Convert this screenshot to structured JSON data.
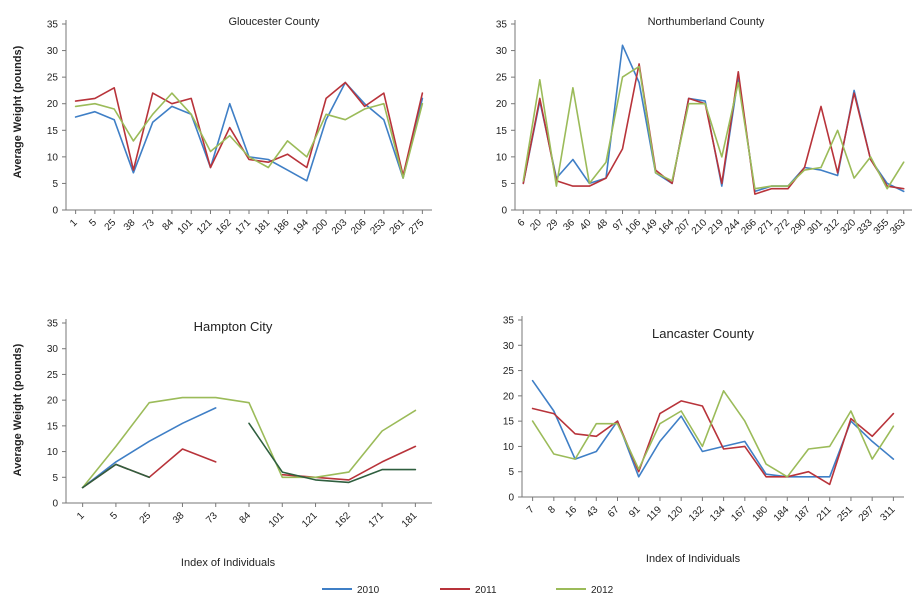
{
  "figure": {
    "y_axis_label": "Average Weight (pounds)",
    "x_axis_label": "Index of Individuals",
    "legend": [
      {
        "name": "2010",
        "color": "#3f7fc6"
      },
      {
        "name": "2011",
        "color": "#b8333a"
      },
      {
        "name": "2012",
        "color": "#9bbb59"
      }
    ]
  },
  "chart_data": [
    {
      "type": "line",
      "title": "Gloucester County",
      "x": [
        "1",
        "5",
        "25",
        "38",
        "73",
        "84",
        "101",
        "121",
        "162",
        "171",
        "181",
        "186",
        "194",
        "200",
        "203",
        "206",
        "253",
        "261",
        "275"
      ],
      "ylim": [
        0,
        35
      ],
      "yticks": [
        0,
        5,
        10,
        15,
        20,
        25,
        30,
        35
      ],
      "grid": false,
      "series": [
        {
          "name": "2010",
          "values": [
            17.5,
            18.5,
            17,
            7,
            16.5,
            19.5,
            18,
            8,
            20,
            10,
            9.5,
            7.5,
            5.5,
            17,
            24,
            20,
            17,
            6,
            21
          ]
        },
        {
          "name": "2011",
          "values": [
            20.5,
            21,
            23,
            7.5,
            22,
            20,
            21,
            8,
            15.5,
            9.5,
            9,
            10.5,
            8,
            21,
            24,
            19.5,
            22,
            6.5,
            22
          ]
        },
        {
          "name": "2012",
          "values": [
            19.5,
            20,
            19,
            13,
            18,
            22,
            18,
            11,
            14,
            10,
            8,
            13,
            10,
            18,
            17,
            19,
            20,
            6,
            20
          ]
        }
      ]
    },
    {
      "type": "line",
      "title": "Northumberland County",
      "x": [
        "6",
        "20",
        "29",
        "36",
        "40",
        "48",
        "97",
        "106",
        "149",
        "164",
        "207",
        "210",
        "219",
        "244",
        "266",
        "271",
        "272",
        "290",
        "301",
        "312",
        "320",
        "333",
        "355",
        "363"
      ],
      "ylim": [
        0,
        35
      ],
      "yticks": [
        0,
        5,
        10,
        15,
        20,
        25,
        30,
        35
      ],
      "grid": false,
      "series": [
        {
          "name": "2010",
          "values": [
            5,
            20.5,
            6,
            9.5,
            5,
            6,
            31,
            24,
            7,
            5,
            21,
            20.5,
            4.5,
            25,
            3.5,
            4.5,
            4.5,
            8,
            7.5,
            6.5,
            22.5,
            9.5,
            5,
            3.5
          ]
        },
        {
          "name": "2011",
          "values": [
            5,
            21,
            5.5,
            4.5,
            4.5,
            6,
            11.5,
            27.5,
            7.5,
            5,
            21,
            20,
            5,
            26,
            3,
            4,
            4,
            8,
            19.5,
            7,
            22,
            9.5,
            4.5,
            4
          ]
        },
        {
          "name": "2012",
          "values": [
            5.5,
            24.5,
            4.5,
            23,
            5,
            9,
            25,
            27,
            7,
            5.5,
            20,
            20,
            10,
            24,
            4,
            4.5,
            4.5,
            7.5,
            8,
            15,
            6,
            10,
            4,
            9
          ]
        }
      ]
    },
    {
      "type": "line",
      "title": "Hampton City",
      "x": [
        "1",
        "5",
        "25",
        "38",
        "73",
        "84",
        "101",
        "121",
        "162",
        "171",
        "181"
      ],
      "xlabel": "Index of Individuals",
      "ylim": [
        0,
        35
      ],
      "yticks": [
        0,
        5,
        10,
        15,
        20,
        25,
        30,
        35
      ],
      "grid": false,
      "series": [
        {
          "name": "2010",
          "values": [
            3,
            8,
            12,
            15.5,
            18.5,
            null,
            null,
            null,
            null,
            null,
            null
          ]
        },
        {
          "name": "2011",
          "values": [
            3,
            7.5,
            5,
            10.5,
            8,
            null,
            5.5,
            5,
            4.5,
            8,
            11
          ]
        },
        {
          "name": "2012",
          "values": [
            3,
            11,
            19.5,
            20.5,
            20.5,
            19.5,
            5,
            5,
            6,
            14,
            18
          ]
        },
        {
          "name": "",
          "values": [
            3,
            7.5,
            5,
            null,
            null,
            15.5,
            6,
            4.5,
            4,
            6.5,
            6.5
          ]
        }
      ]
    },
    {
      "type": "line",
      "title": "Lancaster County",
      "x": [
        "7",
        "8",
        "16",
        "43",
        "67",
        "91",
        "119",
        "120",
        "132",
        "134",
        "167",
        "180",
        "184",
        "187",
        "211",
        "251",
        "297",
        "311"
      ],
      "xlabel": "Index of Individuals",
      "ylim": [
        0,
        35
      ],
      "yticks": [
        0,
        5,
        10,
        15,
        20,
        25,
        30,
        35
      ],
      "grid": false,
      "series": [
        {
          "name": "2010",
          "values": [
            23,
            17,
            7.5,
            9,
            15,
            4,
            11,
            16,
            9,
            10,
            11,
            4.5,
            4,
            4,
            4,
            15,
            11,
            7.5
          ]
        },
        {
          "name": "2011",
          "values": [
            17.5,
            16.5,
            12.5,
            12,
            15,
            5,
            16.5,
            19,
            18,
            9.5,
            10,
            4,
            4,
            5,
            2.5,
            15.5,
            12,
            16.5
          ]
        },
        {
          "name": "2012",
          "values": [
            15,
            8.5,
            7.5,
            14.5,
            14.5,
            5.5,
            14.5,
            17,
            10,
            21,
            15,
            6.5,
            4,
            9.5,
            10,
            17,
            7.5,
            14
          ]
        }
      ]
    }
  ]
}
